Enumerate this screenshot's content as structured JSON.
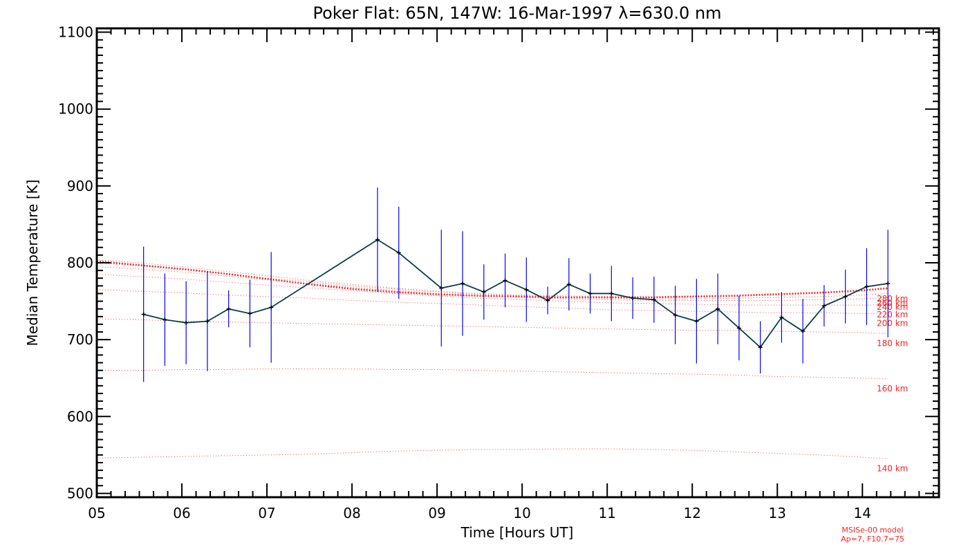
{
  "chart_data": {
    "type": "line",
    "title": "Poker Flat: 65N, 147W: 16-Mar-1997 λ=630.0 nm",
    "xlabel": "Time [Hours UT]",
    "ylabel": "Median Temperature [K]",
    "xlim": [
      5,
      14.9
    ],
    "ylim": [
      495,
      1105
    ],
    "x_ticks": [
      5,
      6,
      7,
      8,
      9,
      10,
      11,
      12,
      13,
      14
    ],
    "x_tick_labels": [
      "05",
      "06",
      "07",
      "08",
      "09",
      "10",
      "11",
      "12",
      "13",
      "14"
    ],
    "y_ticks": [
      500,
      600,
      700,
      800,
      900,
      1000,
      1100
    ],
    "y_tick_labels": [
      "500",
      "600",
      "700",
      "800",
      "900",
      "1000",
      "1100"
    ],
    "series": [
      {
        "name": "Median Temperature",
        "color": "#0a3a4a",
        "errorbar_color": "#0000ff",
        "points": [
          {
            "x": 5.55,
            "y": 733,
            "err": 88
          },
          {
            "x": 5.8,
            "y": 726,
            "err": 60
          },
          {
            "x": 6.05,
            "y": 722,
            "err": 54
          },
          {
            "x": 6.3,
            "y": 724,
            "err": 65
          },
          {
            "x": 6.55,
            "y": 740,
            "err": 24
          },
          {
            "x": 6.8,
            "y": 734,
            "err": 44
          },
          {
            "x": 7.05,
            "y": 742,
            "err": 72
          },
          {
            "x": 8.3,
            "y": 830,
            "err": 68
          },
          {
            "x": 8.55,
            "y": 813,
            "err": 60
          },
          {
            "x": 9.05,
            "y": 767,
            "err": 76
          },
          {
            "x": 9.3,
            "y": 773,
            "err": 68
          },
          {
            "x": 9.55,
            "y": 762,
            "err": 36
          },
          {
            "x": 9.8,
            "y": 777,
            "err": 35
          },
          {
            "x": 10.05,
            "y": 765,
            "err": 42
          },
          {
            "x": 10.3,
            "y": 751,
            "err": 18
          },
          {
            "x": 10.55,
            "y": 772,
            "err": 34
          },
          {
            "x": 10.8,
            "y": 760,
            "err": 26
          },
          {
            "x": 11.05,
            "y": 760,
            "err": 36
          },
          {
            "x": 11.3,
            "y": 754,
            "err": 27
          },
          {
            "x": 11.55,
            "y": 752,
            "err": 30
          },
          {
            "x": 11.8,
            "y": 732,
            "err": 38
          },
          {
            "x": 12.05,
            "y": 724,
            "err": 55
          },
          {
            "x": 12.3,
            "y": 740,
            "err": 46
          },
          {
            "x": 12.55,
            "y": 715,
            "err": 42
          },
          {
            "x": 12.8,
            "y": 690,
            "err": 34
          },
          {
            "x": 13.05,
            "y": 729,
            "err": 33
          },
          {
            "x": 13.3,
            "y": 711,
            "err": 42
          },
          {
            "x": 13.55,
            "y": 744,
            "err": 27
          },
          {
            "x": 13.8,
            "y": 756,
            "err": 35
          },
          {
            "x": 14.05,
            "y": 769,
            "err": 50
          },
          {
            "x": 14.3,
            "y": 773,
            "err": 70
          }
        ]
      }
    ],
    "model": {
      "name": "MSISe-00 model",
      "params": "Ap=7, F10.7=75",
      "color": "#ff2020",
      "x": [
        5.0,
        5.5,
        6.0,
        6.5,
        7.0,
        7.5,
        8.0,
        8.5,
        9.0,
        9.5,
        10.0,
        10.5,
        11.0,
        11.5,
        12.0,
        12.5,
        13.0,
        13.5,
        14.0,
        14.3
      ],
      "bold_level": {
        "values": [
          802,
          797,
          792,
          786,
          779,
          772,
          766,
          762,
          759,
          757,
          756,
          755,
          755,
          755,
          756,
          757,
          759,
          761,
          764,
          767
        ]
      },
      "levels": [
        {
          "label": "140 km",
          "values": [
            546,
            547,
            548,
            549,
            550,
            551,
            553,
            555,
            556,
            557,
            557,
            558,
            558,
            557,
            556,
            554,
            552,
            550,
            547,
            545
          ]
        },
        {
          "label": "160 km",
          "values": [
            660,
            660,
            661,
            661,
            662,
            662,
            662,
            661,
            661,
            660,
            659,
            658,
            657,
            656,
            655,
            654,
            652,
            651,
            650,
            649
          ]
        },
        {
          "label": "180 km",
          "values": [
            727,
            726,
            724,
            723,
            722,
            721,
            720,
            719,
            718,
            717,
            716,
            715,
            714,
            713,
            712,
            712,
            711,
            710,
            709,
            708
          ]
        },
        {
          "label": "200 km",
          "values": [
            765,
            763,
            761,
            758,
            756,
            754,
            751,
            749,
            747,
            745,
            743,
            741,
            739,
            738,
            737,
            736,
            735,
            735,
            734,
            734
          ]
        },
        {
          "label": "220 km",
          "values": [
            785,
            782,
            779,
            775,
            771,
            767,
            764,
            760,
            757,
            754,
            752,
            750,
            748,
            747,
            746,
            745,
            745,
            745,
            745,
            745
          ]
        },
        {
          "label": "240 km",
          "values": [
            795,
            792,
            788,
            783,
            778,
            773,
            768,
            764,
            760,
            757,
            755,
            753,
            752,
            751,
            751,
            751,
            751,
            752,
            753,
            755
          ]
        },
        {
          "label": "260 km",
          "values": [
            800,
            796,
            791,
            786,
            780,
            775,
            770,
            766,
            762,
            759,
            757,
            755,
            754,
            753,
            753,
            754,
            755,
            756,
            758,
            760
          ]
        },
        {
          "label": "280 km",
          "values": [
            804,
            800,
            795,
            789,
            783,
            777,
            772,
            767,
            763,
            760,
            758,
            757,
            756,
            756,
            757,
            758,
            760,
            762,
            764,
            766
          ]
        }
      ]
    }
  }
}
